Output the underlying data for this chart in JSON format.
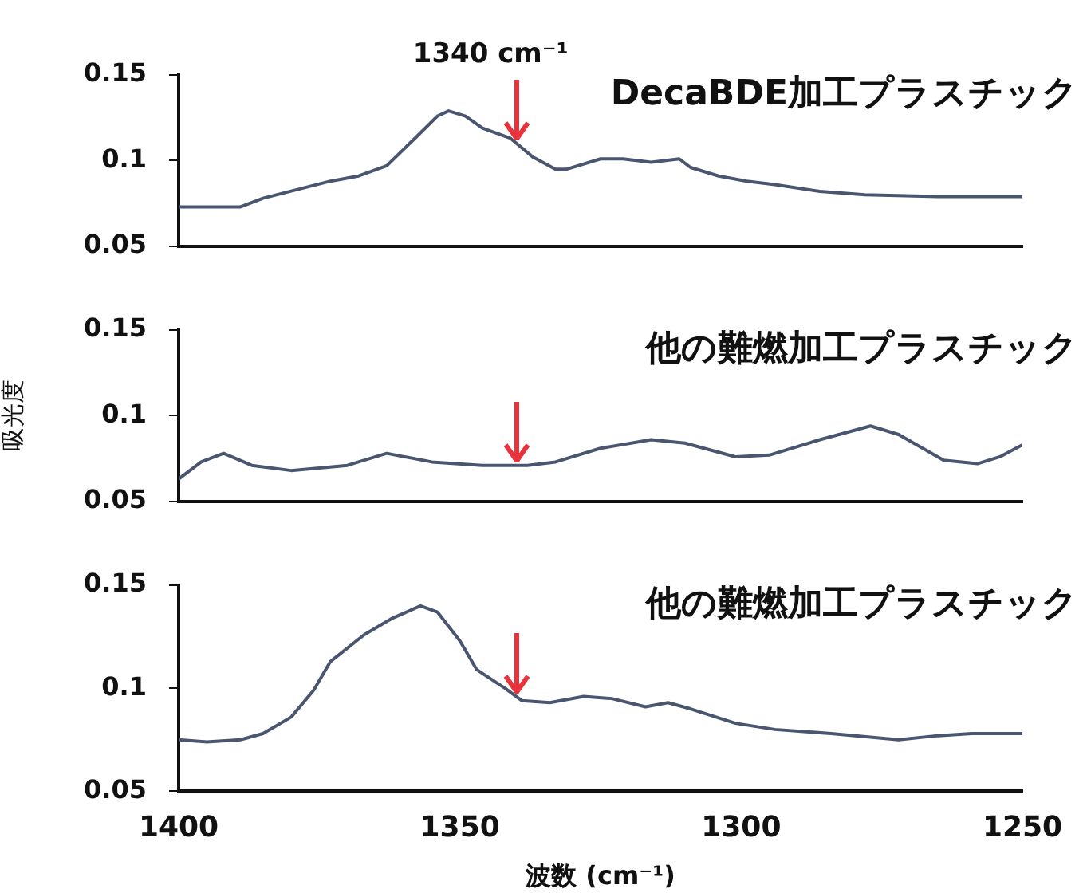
{
  "chart_data": [
    {
      "type": "line",
      "xlim": [
        1400,
        1250
      ],
      "ylim": [
        0.05,
        0.15
      ],
      "yticks": [
        0.05,
        0.1,
        0.15
      ],
      "tick_labels": "y",
      "marker": "none",
      "annotations": [
        "DecaBDE加工プラスチック"
      ],
      "ref_lines": [
        {
          "axis": "x",
          "value": 1340,
          "label": "1340 cm⁻¹",
          "color": "#e8323c"
        }
      ],
      "series": [
        {
          "color": "#4a5670",
          "x": [
            1400,
            1395,
            1389,
            1385,
            1379,
            1373,
            1368,
            1363,
            1358,
            1354,
            1352,
            1349,
            1346,
            1341,
            1337,
            1333,
            1331,
            1325,
            1321,
            1316,
            1311,
            1309,
            1304,
            1299,
            1294,
            1286,
            1278,
            1265,
            1259,
            1250
          ],
          "values": [
            0.073,
            0.073,
            0.073,
            0.078,
            0.083,
            0.088,
            0.091,
            0.097,
            0.113,
            0.126,
            0.129,
            0.126,
            0.119,
            0.113,
            0.102,
            0.095,
            0.095,
            0.101,
            0.101,
            0.099,
            0.101,
            0.096,
            0.091,
            0.088,
            0.086,
            0.082,
            0.08,
            0.079,
            0.079,
            0.079
          ]
        }
      ]
    },
    {
      "type": "line",
      "xlim": [
        1400,
        1250
      ],
      "ylim": [
        0.05,
        0.15
      ],
      "yticks": [
        0.05,
        0.1,
        0.15
      ],
      "tick_labels": "y",
      "marker": "none",
      "ylabel": "吸光度",
      "annotations": [
        "他の難燃加工プラスチック"
      ],
      "ref_lines": [
        {
          "axis": "x",
          "value": 1340,
          "color": "#e8323c"
        }
      ],
      "series": [
        {
          "color": "#4a5670",
          "x": [
            1400,
            1396,
            1392,
            1387,
            1380,
            1370,
            1363,
            1355,
            1346,
            1338,
            1333,
            1325,
            1316,
            1310,
            1301,
            1295,
            1286,
            1277,
            1272,
            1264,
            1258,
            1254,
            1250
          ],
          "values": [
            0.063,
            0.073,
            0.078,
            0.071,
            0.068,
            0.071,
            0.078,
            0.073,
            0.071,
            0.071,
            0.073,
            0.081,
            0.086,
            0.084,
            0.076,
            0.077,
            0.086,
            0.094,
            0.089,
            0.074,
            0.072,
            0.076,
            0.083
          ]
        }
      ]
    },
    {
      "type": "line",
      "xlim": [
        1400,
        1250
      ],
      "ylim": [
        0.05,
        0.15
      ],
      "xticks": [
        1400,
        1350,
        1300,
        1250
      ],
      "yticks": [
        0.05,
        0.1,
        0.15
      ],
      "marker": "none",
      "xlabel": "波数 (cm⁻¹)",
      "annotations": [
        "他の難燃加工プラスチック"
      ],
      "ref_lines": [
        {
          "axis": "x",
          "value": 1340,
          "color": "#e8323c"
        }
      ],
      "series": [
        {
          "color": "#4a5670",
          "x": [
            1400,
            1395,
            1389,
            1385,
            1380,
            1376,
            1373,
            1367,
            1362,
            1357,
            1354,
            1350,
            1347,
            1342,
            1339,
            1334,
            1328,
            1323,
            1317,
            1313,
            1309,
            1301,
            1294,
            1284,
            1272,
            1265,
            1259,
            1250
          ],
          "values": [
            0.075,
            0.074,
            0.075,
            0.078,
            0.086,
            0.099,
            0.113,
            0.126,
            0.134,
            0.14,
            0.137,
            0.123,
            0.109,
            0.1,
            0.094,
            0.093,
            0.096,
            0.095,
            0.091,
            0.093,
            0.09,
            0.083,
            0.08,
            0.078,
            0.075,
            0.077,
            0.078,
            0.078
          ]
        }
      ]
    }
  ]
}
